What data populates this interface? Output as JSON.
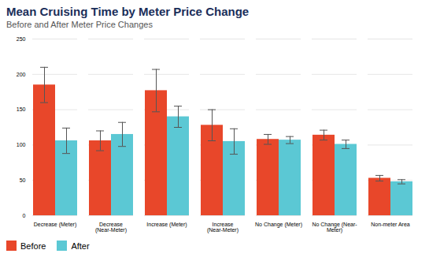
{
  "chart_data": {
    "type": "bar",
    "title": "Mean Cruising Time by Meter Price Change",
    "subtitle": "Before and After Meter Price Changes",
    "categories": [
      "Decrease (Meter)",
      "Decrease\n(Near-Meter)",
      "Increase (Meter)",
      "Increase\n(Near-Meter)",
      "No Change (Meter)",
      "No Change (Near-\nMeter)",
      "Non-meter Area"
    ],
    "series": [
      {
        "name": "Before",
        "color": "#E8472A",
        "values": [
          185,
          106,
          177,
          128,
          108,
          114,
          53
        ],
        "errors": [
          25,
          14,
          30,
          22,
          7,
          7,
          4
        ]
      },
      {
        "name": "After",
        "color": "#5BC8D4",
        "values": [
          106,
          115,
          140,
          105,
          107,
          101,
          48
        ],
        "errors": [
          18,
          17,
          15,
          18,
          5,
          6,
          3
        ]
      }
    ],
    "ylim": [
      0,
      250
    ],
    "yticks": [
      0,
      50,
      100,
      150,
      200,
      250
    ],
    "grid": true,
    "legend": "bottom"
  }
}
